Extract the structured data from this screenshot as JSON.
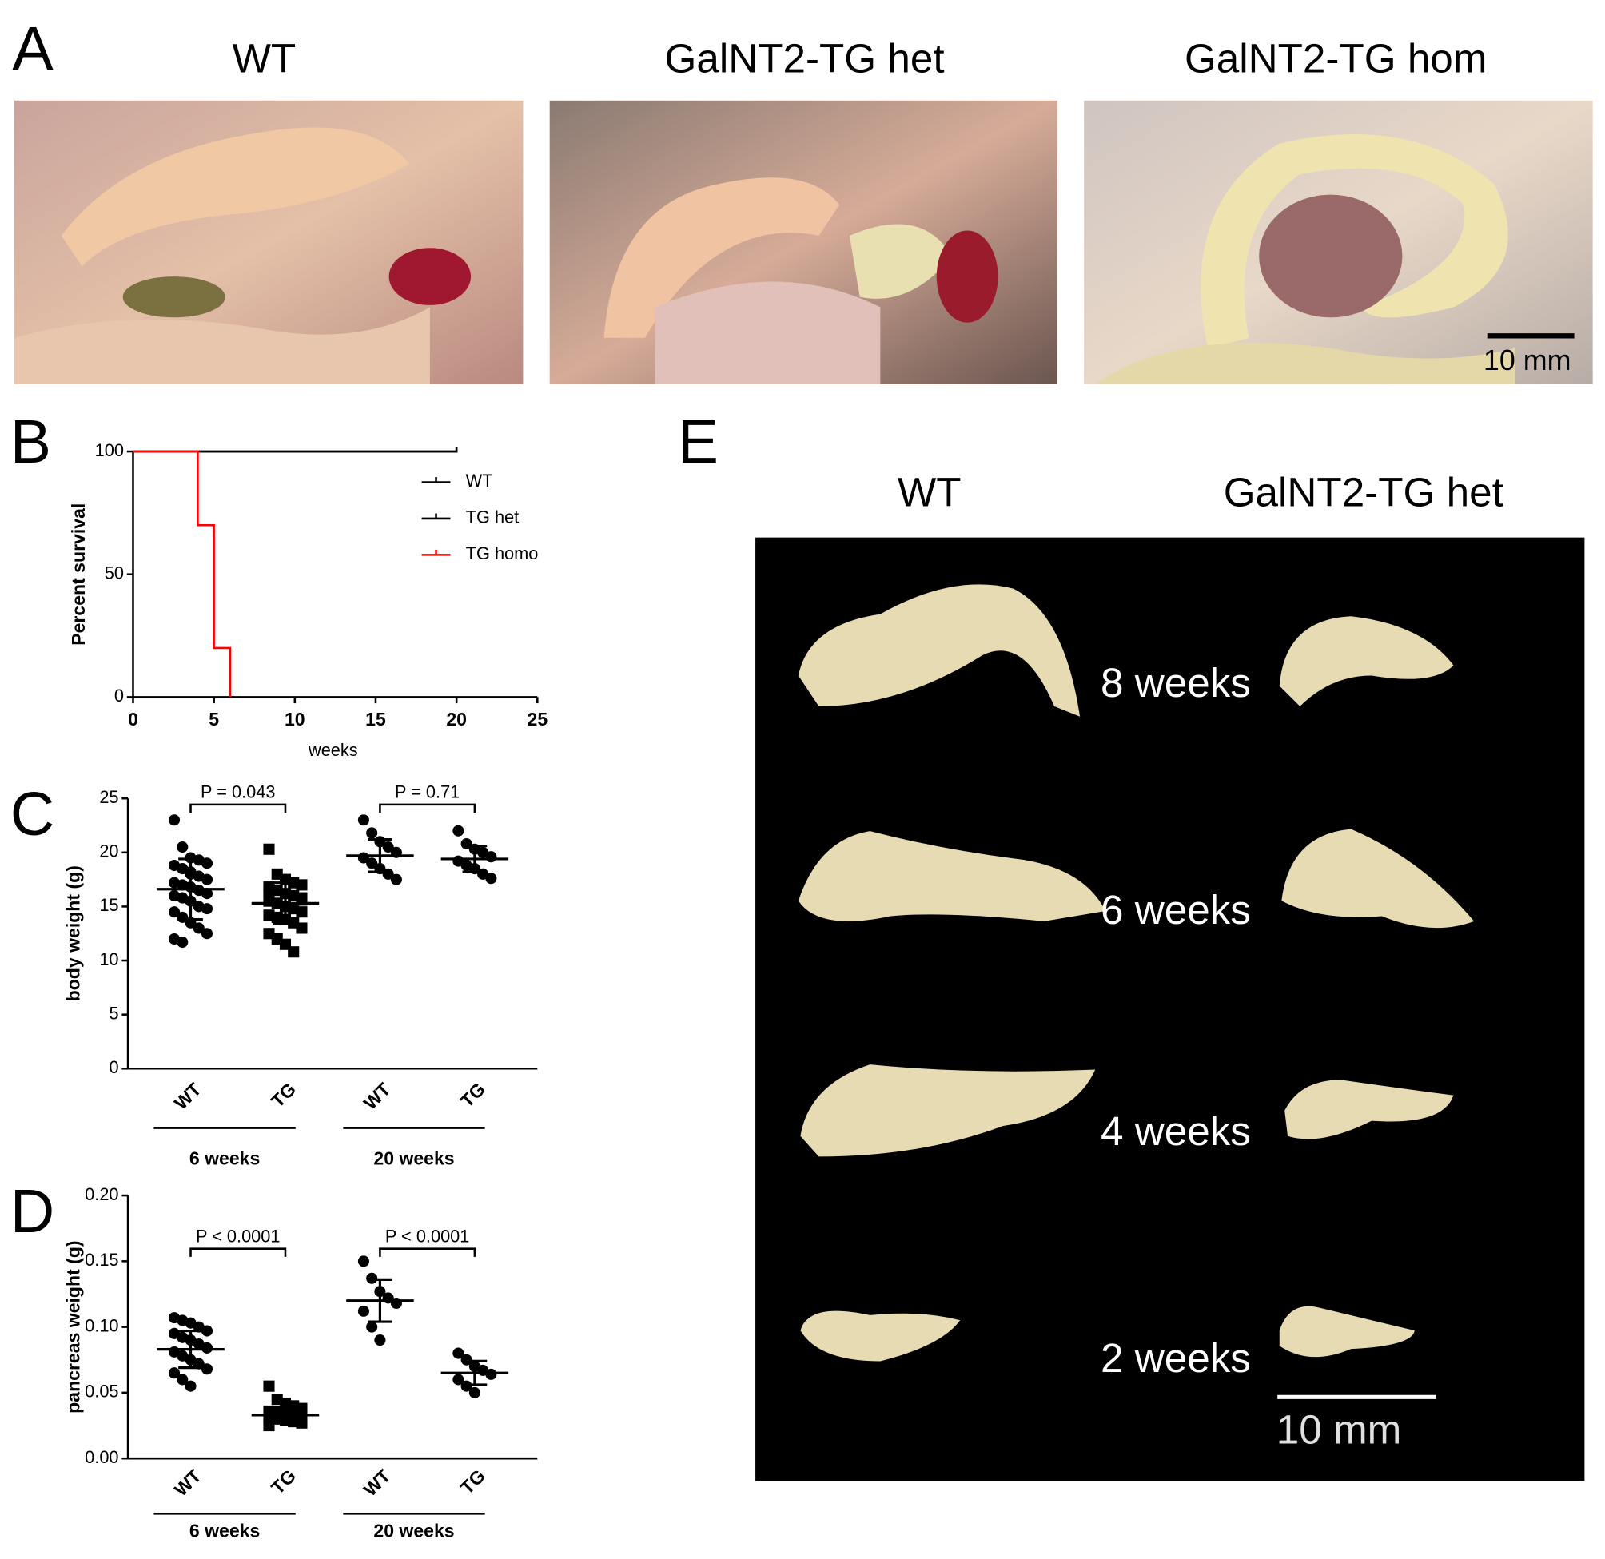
{
  "figure": {
    "panels": [
      "A",
      "B",
      "C",
      "D",
      "E"
    ]
  },
  "photos_a": {
    "titles": [
      "WT",
      "GalNT2-TG het",
      "GalNT2-TG hom"
    ],
    "scale_bar": "10 mm"
  },
  "photo_e": {
    "columns": [
      "WT",
      "GalNT2-TG het"
    ],
    "rows": [
      "8 weeks",
      "6 weeks",
      "4 weeks",
      "2 weeks"
    ],
    "scale_bar": "10 mm"
  },
  "chart_data": [
    {
      "type": "step",
      "xlabel": "weeks",
      "ylabel": "Percent survival",
      "xlim": [
        0,
        25
      ],
      "xticks": [
        0,
        5,
        10,
        15,
        20,
        25
      ],
      "ylim": [
        0,
        100
      ],
      "yticks": [
        0,
        50,
        100
      ],
      "legend": "upper right",
      "series": [
        {
          "name": "WT",
          "color": "#000000",
          "x": [
            0,
            20
          ],
          "values": [
            100,
            100
          ]
        },
        {
          "name": "TG het",
          "color": "#000000",
          "x": [
            0,
            20
          ],
          "values": [
            100,
            100
          ]
        },
        {
          "name": "TG homo",
          "color": "#ff0000",
          "x": [
            0,
            4,
            5,
            6
          ],
          "values": [
            100,
            70,
            20,
            0
          ]
        }
      ]
    },
    {
      "type": "dotplot",
      "ylabel": "body weight (g)",
      "ylim": [
        0,
        25
      ],
      "yticks": [
        0,
        5,
        10,
        15,
        20,
        25
      ],
      "categories": [
        "WT",
        "TG",
        "WT",
        "TG"
      ],
      "groups": [
        "6 weeks",
        "20 weeks"
      ],
      "markers": [
        "circle",
        "square",
        "circle",
        "circle"
      ],
      "points": [
        [
          23.0,
          20.5,
          19.5,
          19.3,
          19.0,
          18.8,
          18.5,
          18.0,
          17.8,
          17.5,
          17.2,
          17.0,
          16.8,
          16.5,
          16.2,
          16.0,
          15.8,
          15.5,
          15.0,
          14.8,
          14.5,
          14.0,
          13.5,
          13.0,
          12.5,
          12.0,
          11.7,
          18.2
        ],
        [
          20.3,
          18.0,
          17.5,
          17.2,
          17.0,
          16.8,
          16.5,
          16.2,
          16.0,
          15.8,
          15.5,
          15.3,
          15.0,
          14.8,
          14.5,
          14.2,
          14.0,
          13.8,
          13.5,
          13.0,
          12.5,
          12.0,
          11.5,
          10.8,
          15.6,
          16.4
        ],
        [
          23.0,
          21.8,
          21.0,
          20.5,
          20.0,
          19.5,
          19.0,
          18.5,
          18.0,
          17.5
        ],
        [
          22.0,
          20.8,
          20.3,
          20.0,
          19.6,
          19.2,
          18.8,
          18.5,
          18.0,
          17.6
        ]
      ],
      "means": [
        16.6,
        15.3,
        19.7,
        19.4
      ],
      "sd": [
        2.8,
        1.9,
        1.5,
        1.2
      ],
      "comparisons": [
        "P = 0.043",
        "P = 0.71"
      ]
    },
    {
      "type": "dotplot",
      "ylabel": "pancreas weight (g)",
      "ylim": [
        0,
        0.2
      ],
      "yticks": [
        {
          "value": 0,
          "label": "0.00"
        },
        {
          "value": 0.05,
          "label": "0.05"
        },
        {
          "value": 0.1,
          "label": "0.10"
        },
        {
          "value": 0.15,
          "label": "0.15"
        },
        {
          "value": 0.2,
          "label": "0.20"
        }
      ],
      "categories": [
        "WT",
        "TG",
        "WT",
        "TG"
      ],
      "groups": [
        "6 weeks",
        "20 weeks"
      ],
      "markers": [
        "circle",
        "square",
        "circle",
        "circle"
      ],
      "points": [
        [
          0.107,
          0.105,
          0.103,
          0.1,
          0.097,
          0.095,
          0.092,
          0.09,
          0.087,
          0.084,
          0.081,
          0.078,
          0.075,
          0.072,
          0.068,
          0.065,
          0.06,
          0.055
        ],
        [
          0.055,
          0.045,
          0.042,
          0.04,
          0.038,
          0.036,
          0.035,
          0.034,
          0.033,
          0.032,
          0.031,
          0.03,
          0.029,
          0.028,
          0.027,
          0.025
        ],
        [
          0.15,
          0.137,
          0.127,
          0.122,
          0.118,
          0.112,
          0.1,
          0.09
        ],
        [
          0.08,
          0.075,
          0.07,
          0.067,
          0.064,
          0.06,
          0.055,
          0.05
        ]
      ],
      "means": [
        0.083,
        0.033,
        0.12,
        0.065
      ],
      "sd": [
        0.014,
        0.006,
        0.016,
        0.009
      ],
      "comparisons": [
        "P < 0.0001",
        "P < 0.0001"
      ]
    }
  ]
}
